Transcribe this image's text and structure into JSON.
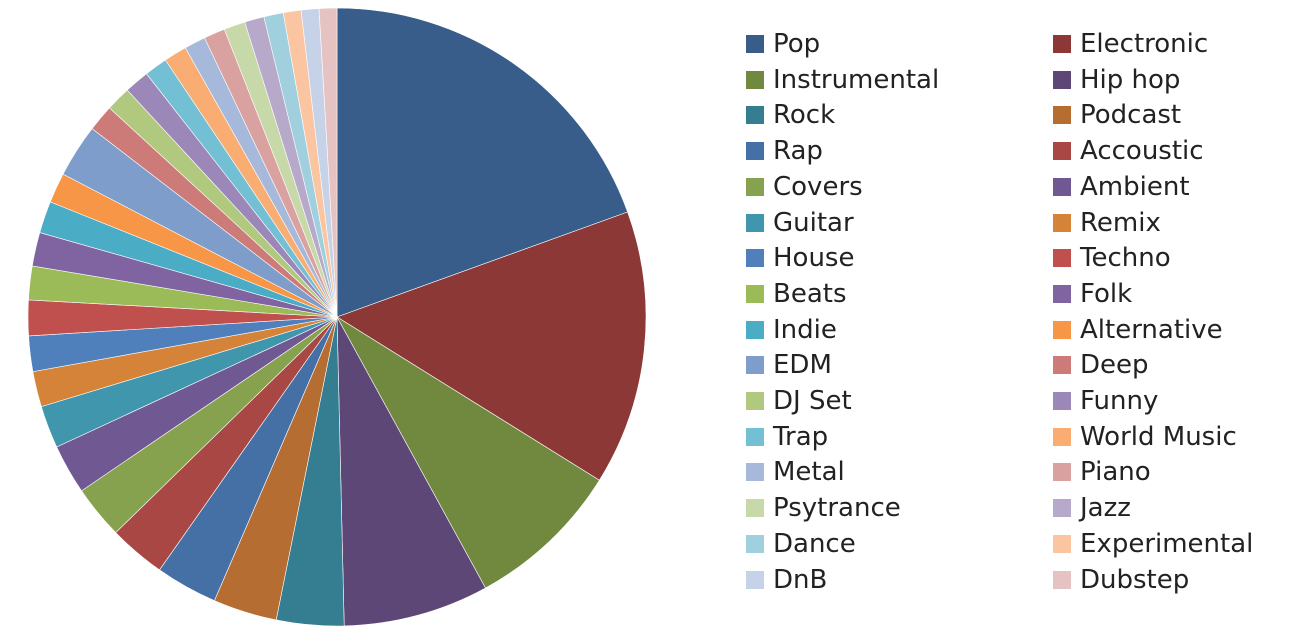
{
  "chart_data": {
    "type": "pie",
    "title": "",
    "legend_position": "right",
    "legend_columns": 2,
    "categories": [
      "Pop",
      "Electronic",
      "Instrumental",
      "Hip hop",
      "Rock",
      "Podcast",
      "Rap",
      "Accoustic",
      "Covers",
      "Ambient",
      "Guitar",
      "Remix",
      "House",
      "Techno",
      "Beats",
      "Folk",
      "Indie",
      "Alternative",
      "EDM",
      "Deep",
      "DJ Set",
      "Funny",
      "Trap",
      "World Music",
      "Metal",
      "Piano",
      "Psytrance",
      "Jazz",
      "Dance",
      "Experimental",
      "DnB",
      "Dubstep"
    ],
    "values": [
      21.0,
      15.5,
      8.8,
      8.2,
      3.8,
      3.6,
      3.5,
      3.2,
      3.0,
      2.8,
      2.4,
      2.0,
      2.0,
      2.0,
      1.9,
      1.9,
      1.8,
      1.7,
      3.0,
      1.5,
      1.4,
      1.4,
      1.3,
      1.3,
      1.2,
      1.2,
      1.2,
      1.1,
      1.1,
      1.0,
      1.0,
      1.0
    ],
    "colors": [
      "#385d8a",
      "#8c3836",
      "#71893f",
      "#5d4776",
      "#357d91",
      "#b66d31",
      "#4470a6",
      "#a84743",
      "#87a24f",
      "#705892",
      "#4096ad",
      "#d58339",
      "#4f80bc",
      "#c0504d",
      "#9bbb59",
      "#8064a2",
      "#4bacc6",
      "#f79646",
      "#7e9dcb",
      "#cd7b79",
      "#b0c97f",
      "#9c88b8",
      "#73bfd4",
      "#f9ad73",
      "#a6b9da",
      "#d9a1a0",
      "#c7d8a9",
      "#b7a9ca",
      "#a0d0de",
      "#fbc5a1",
      "#c6d2e8",
      "#e4c3c2"
    ]
  }
}
